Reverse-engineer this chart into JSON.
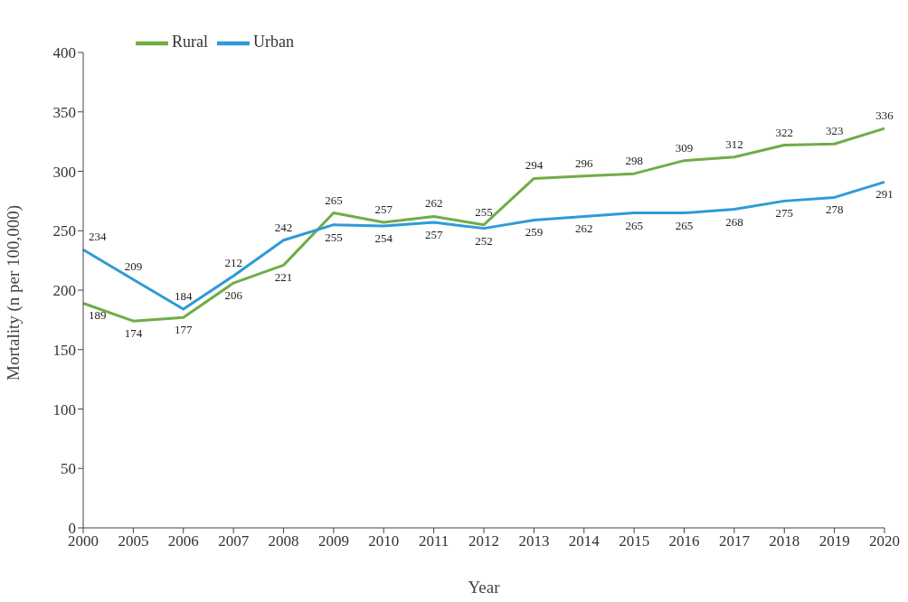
{
  "chart_data": {
    "type": "line",
    "xlabel": "Year",
    "ylabel": "Mortality (n per 100,000)",
    "categories": [
      "2000",
      "2005",
      "2006",
      "2007",
      "2008",
      "2009",
      "2010",
      "2011",
      "2012",
      "2013",
      "2014",
      "2015",
      "2016",
      "2017",
      "2018",
      "2019",
      "2020"
    ],
    "series": [
      {
        "name": "Rural",
        "color": "#70ad47",
        "values": [
          189,
          174,
          177,
          206,
          221,
          265,
          257,
          262,
          255,
          294,
          296,
          298,
          309,
          312,
          322,
          323,
          336
        ]
      },
      {
        "name": "Urban",
        "color": "#2e9bd6",
        "values": [
          234,
          209,
          184,
          212,
          242,
          255,
          254,
          257,
          252,
          259,
          262,
          265,
          265,
          268,
          275,
          278,
          291
        ]
      }
    ],
    "ylim": [
      0,
      400
    ],
    "yticks": [
      0,
      50,
      100,
      150,
      200,
      250,
      300,
      350,
      400
    ],
    "grid": false,
    "legend": "top left",
    "marker": "none",
    "line_style": "solid",
    "data_labels": true
  }
}
